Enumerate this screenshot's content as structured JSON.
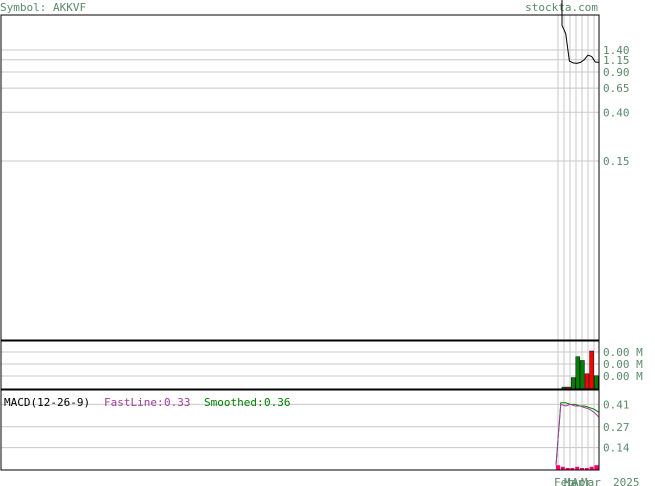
{
  "header": {
    "symbol_label": "Symbol: AKKVF",
    "site_label": "stockta.com"
  },
  "colors": {
    "header_text": "#5a8a6a",
    "grid": "#c8c8c8",
    "price_line": "#000000",
    "up_bar": "#008000",
    "down_bar": "#ff0000",
    "fastline": "#a040a0",
    "smoothed": "#008000",
    "macd_hist": "#ff0066"
  },
  "chart_data": [
    {
      "type": "line",
      "name": "price",
      "yscale": "log",
      "y_ticks": [
        "1.40",
        "1.15",
        "0.90",
        "0.65",
        "0.40",
        "0.15"
      ],
      "y_tick_values": [
        1.4,
        1.15,
        0.9,
        0.65,
        0.4,
        0.15
      ],
      "series": [
        {
          "name": "",
          "values": [
            2.3,
            1.95,
            1.12,
            1.08,
            1.07,
            1.09,
            1.15,
            1.26,
            1.23,
            1.1,
            1.09
          ]
        }
      ]
    },
    {
      "type": "bar",
      "name": "volume",
      "y_ticks": [
        "0.00 M",
        "0.00 M",
        "0.00 M"
      ],
      "values": [
        0.05,
        0.05,
        0.3,
        0.85,
        0.75,
        0.4,
        1.0,
        0.35
      ],
      "colors": [
        "#008000",
        "#ff0000",
        "#008000",
        "#008000",
        "#008000",
        "#ff0000",
        "#ff0000",
        "#008000"
      ]
    },
    {
      "type": "line",
      "name": "macd",
      "label": "MACD(12-26-9)",
      "fastline_label": "FastLine:",
      "fastline_value": "0.33",
      "smoothed_label": "Smoothed:",
      "smoothed_value": "0.36",
      "y_ticks": [
        "0.41",
        "0.27",
        "0.14"
      ],
      "y_tick_values": [
        0.41,
        0.27,
        0.14
      ],
      "ylim": [
        0,
        0.5
      ],
      "fastline": [
        0.03,
        0.41,
        0.4,
        0.41,
        0.4,
        0.4,
        0.39,
        0.38,
        0.36,
        0.33
      ],
      "smoothed": [
        0.03,
        0.42,
        0.42,
        0.41,
        0.41,
        0.4,
        0.4,
        0.39,
        0.38,
        0.36
      ],
      "histogram": [
        0.03,
        0.02,
        0.01,
        0.01,
        0.02,
        0.01,
        0.01,
        0.02,
        0.03
      ]
    }
  ],
  "x_axis": {
    "labels": [
      "Feb",
      "Mar",
      "Apr",
      "Mar",
      "2025"
    ]
  }
}
